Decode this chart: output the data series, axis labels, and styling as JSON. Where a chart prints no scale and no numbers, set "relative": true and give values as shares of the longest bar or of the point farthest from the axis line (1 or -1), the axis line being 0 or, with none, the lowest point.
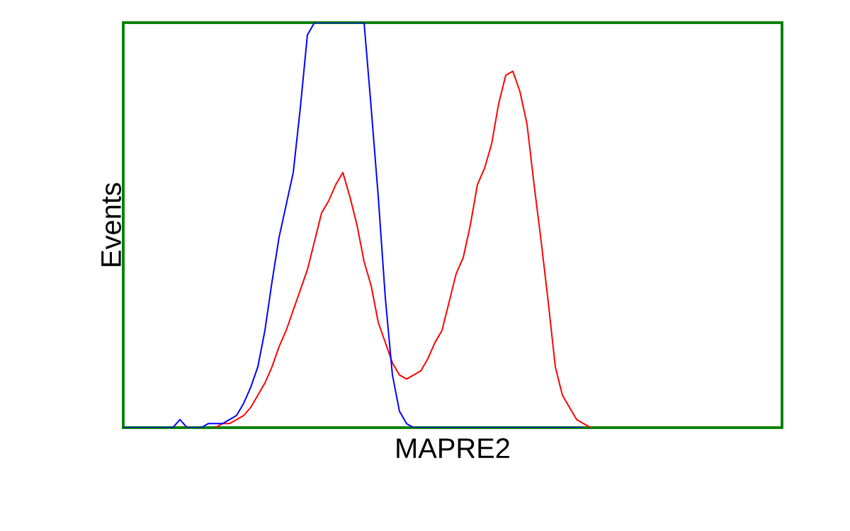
{
  "chart_data": {
    "type": "line",
    "relative": true,
    "xlabel": "MAPRE2",
    "ylabel": "Events",
    "categories": [
      null,
      null,
      null,
      null,
      null,
      null,
      null,
      null,
      null,
      null,
      null,
      null,
      null,
      null,
      null,
      null,
      null,
      null,
      null,
      null,
      null,
      null,
      null,
      null,
      null,
      null,
      null,
      null,
      null,
      null,
      null,
      null,
      null,
      null,
      null,
      null,
      null,
      null,
      null,
      null,
      null,
      null,
      null,
      null,
      null,
      null,
      null,
      null,
      null,
      null,
      null,
      null,
      null,
      null,
      null,
      null,
      null,
      null,
      null,
      null,
      null,
      null,
      null,
      null,
      null,
      null,
      null,
      null,
      null,
      null,
      null,
      null,
      null,
      null,
      null,
      null,
      null,
      null,
      null,
      null,
      null,
      null,
      null,
      null,
      null,
      null,
      null,
      null,
      null,
      null,
      null,
      null,
      null,
      null
    ],
    "series": [
      {
        "color": "#0000ff",
        "values": [
          0,
          0,
          0,
          0,
          0,
          0,
          0,
          0,
          0.02,
          0,
          0,
          0,
          0.01,
          0.01,
          0.01,
          0.02,
          0.03,
          0.06,
          0.1,
          0.15,
          0.24,
          0.36,
          0.47,
          0.55,
          0.63,
          0.79,
          0.97,
          1,
          1,
          1,
          1,
          1,
          1,
          1,
          1,
          0.79,
          0.57,
          0.32,
          0.13,
          0.04,
          0.01,
          0,
          0,
          0,
          0,
          0,
          0,
          0,
          0,
          0,
          0,
          0,
          0,
          0,
          0,
          0,
          0,
          0,
          0,
          0,
          0,
          0,
          0,
          0,
          0,
          0,
          null,
          null,
          null,
          null,
          null,
          null,
          null,
          null,
          null,
          null,
          null,
          null,
          null,
          null,
          null,
          null,
          null,
          null,
          null,
          null,
          null,
          null,
          null,
          null,
          null,
          null,
          null,
          null
        ]
      },
      {
        "color": "#ff0000",
        "values": [
          null,
          null,
          null,
          null,
          null,
          null,
          null,
          null,
          null,
          null,
          null,
          null,
          null,
          0,
          0.01,
          0.01,
          0.02,
          0.03,
          0.05,
          0.08,
          0.11,
          0.15,
          0.2,
          0.24,
          0.29,
          0.34,
          0.39,
          0.46,
          0.53,
          0.56,
          0.6,
          0.63,
          0.57,
          0.5,
          0.41,
          0.35,
          0.26,
          0.21,
          0.16,
          0.13,
          0.12,
          0.13,
          0.14,
          0.17,
          0.21,
          0.24,
          0.31,
          0.38,
          0.42,
          0.5,
          0.6,
          0.64,
          0.7,
          0.8,
          0.87,
          0.88,
          0.83,
          0.75,
          0.6,
          0.46,
          0.31,
          0.15,
          0.08,
          0.05,
          0.02,
          0.01,
          0,
          null,
          null,
          null,
          null,
          null,
          null,
          null,
          null,
          null,
          null,
          null,
          null,
          null,
          null,
          null,
          null,
          null,
          null,
          null,
          null,
          null,
          null,
          null,
          null,
          null,
          null,
          null
        ]
      }
    ]
  }
}
